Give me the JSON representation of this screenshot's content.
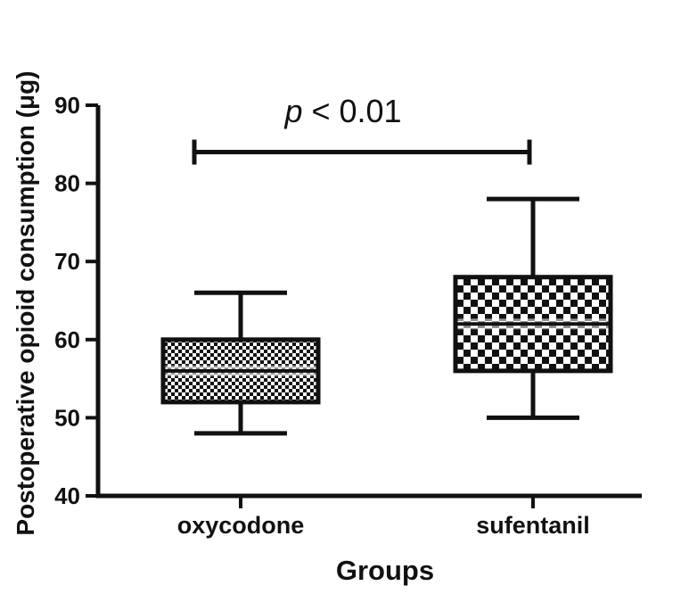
{
  "chart_data": {
    "type": "box",
    "title": "",
    "xlabel": "Groups",
    "ylabel": "Postoperative opioid consumption (μg)",
    "ylim": [
      40,
      90
    ],
    "yticks": [
      40,
      50,
      60,
      70,
      80,
      90
    ],
    "categories": [
      "oxycodone",
      "sufentanil"
    ],
    "boxes": [
      {
        "category": "oxycodone",
        "min": 48,
        "q1": 52,
        "median": 56,
        "q3": 60,
        "max": 66,
        "pattern": "fine-checker"
      },
      {
        "category": "sufentanil",
        "min": 50,
        "q1": 56,
        "median": 62,
        "q3": 68,
        "max": 78,
        "pattern": "coarse-checker"
      }
    ],
    "annotation": {
      "p_symbol": "p",
      "p_rest": " < 0.01",
      "bracket_y": 84,
      "from": "oxycodone",
      "to": "sufentanil"
    }
  }
}
